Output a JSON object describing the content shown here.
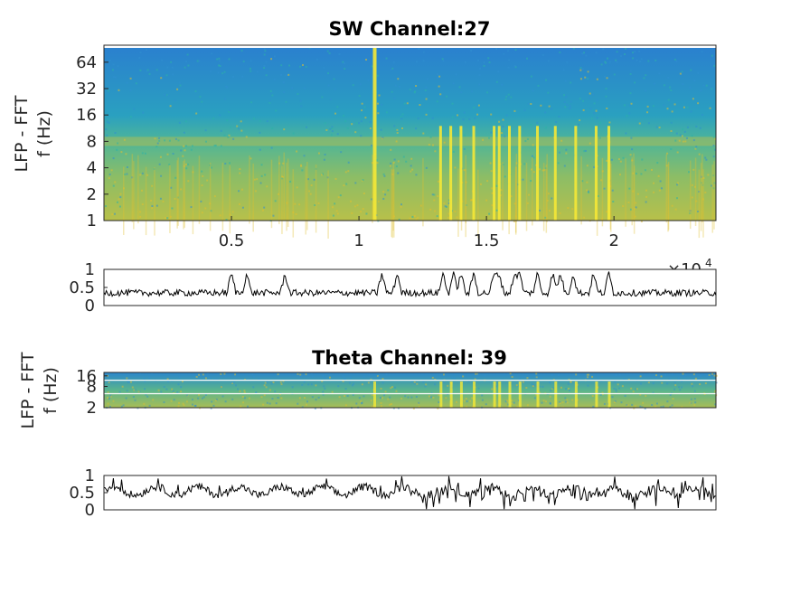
{
  "colors": {
    "spec_low": "#2f8fd0",
    "spec_mid": "#2bb3a8",
    "spec_high": "#e0c030",
    "spec_peak": "#f5e836",
    "trace": "#000000"
  },
  "chart_data": [
    {
      "id": "sw_spectrogram",
      "type": "heatmap",
      "title": "SW Channel:27",
      "xlabel": "",
      "ylabel_lines": [
        "LFP - FFT",
        "f (Hz)"
      ],
      "xlim": [
        0,
        24000
      ],
      "ylim": [
        1,
        100
      ],
      "yscale": "log",
      "xticks": [
        5000,
        10000,
        15000,
        20000
      ],
      "xticklabels": [
        "0.5",
        "1",
        "1.5",
        "2"
      ],
      "yticks": [
        1,
        2,
        4,
        8,
        16,
        32,
        64
      ],
      "yticklabels": [
        "1",
        "2",
        "4",
        "8",
        "16",
        "32",
        "64"
      ],
      "x_exponent": "×10",
      "x_exponent_power": "4",
      "band_hz": 8,
      "bright_bursts_x": [
        10600,
        13200,
        13600,
        14000,
        14500,
        15300,
        15500,
        15900,
        16300,
        17000,
        17700,
        18500,
        19300,
        19800
      ]
    },
    {
      "id": "sw_trace",
      "type": "line",
      "title": "",
      "xlim": [
        0,
        24000
      ],
      "ylim": [
        0,
        1
      ],
      "yticks": [
        0,
        0.5,
        1
      ],
      "yticklabels": [
        "0",
        "0.5",
        "1"
      ],
      "spikes_x": [
        5000,
        5600,
        7100,
        10900,
        11500,
        13300,
        13700,
        14000,
        14500,
        15300,
        15500,
        16100,
        16300,
        17000,
        17600,
        17900,
        18400,
        19200,
        19800
      ],
      "baseline": 0.35
    },
    {
      "id": "theta_spectrogram",
      "type": "heatmap",
      "title": "Theta Channel: 39",
      "xlabel": "",
      "ylabel_lines": [
        "LFP - FFT",
        "f (Hz)"
      ],
      "xlim": [
        0,
        24000
      ],
      "ylim": [
        2,
        20
      ],
      "yscale": "log",
      "yticks": [
        2,
        8,
        16
      ],
      "yticklabels": [
        "2",
        "8",
        "16"
      ],
      "hlines_hz": [
        5,
        12
      ]
    },
    {
      "id": "theta_trace",
      "type": "line",
      "title": "",
      "xlim": [
        0,
        24000
      ],
      "ylim": [
        0,
        1
      ],
      "yticks": [
        0,
        0.5,
        1
      ],
      "yticklabels": [
        "0",
        "0.5",
        "1"
      ],
      "baseline": 0.55
    }
  ]
}
